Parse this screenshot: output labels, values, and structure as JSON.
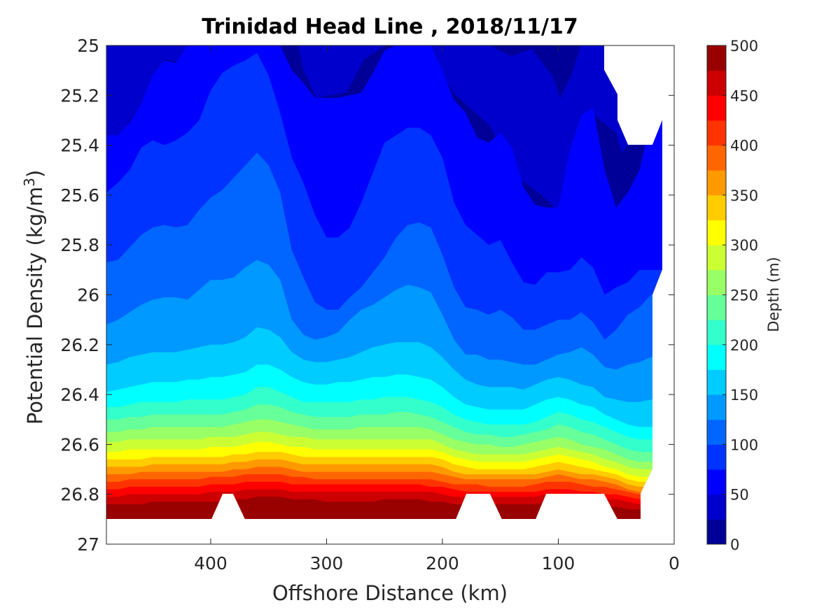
{
  "chart_data": {
    "type": "contourf",
    "title": "Trinidad Head Line , 2018/11/17",
    "xlabel": "Offshore Distance (km)",
    "ylabel_main": "Potential Density (kg/m",
    "ylabel_sup": "3",
    "ylabel_close": ")",
    "colorbar_label": "Depth (m)",
    "x_reversed": true,
    "y_reversed": true,
    "xlim": [
      0,
      490
    ],
    "ylim": [
      25,
      27
    ],
    "xticks": [
      400,
      300,
      200,
      100,
      0
    ],
    "yticks": [
      "25",
      "25.2",
      "25.4",
      "25.6",
      "25.8",
      "26",
      "26.2",
      "26.4",
      "26.6",
      "26.8",
      "27"
    ],
    "colorbar_range": [
      0,
      500
    ],
    "colorbar_ticks": [
      0,
      50,
      100,
      150,
      200,
      250,
      300,
      350,
      400,
      450,
      500
    ],
    "colormap": "jet",
    "levels_step": 25,
    "stations_km": [
      490,
      480,
      470,
      460,
      450,
      440,
      430,
      420,
      410,
      400,
      390,
      380,
      370,
      360,
      350,
      340,
      330,
      320,
      310,
      300,
      290,
      280,
      270,
      260,
      250,
      240,
      230,
      220,
      210,
      200,
      190,
      180,
      170,
      160,
      150,
      140,
      130,
      120,
      110,
      100,
      90,
      80,
      70,
      60,
      50,
      40,
      30,
      20
    ],
    "depth_isopycnals": [
      {
        "depth": 50,
        "density": [
          25.36,
          25.36,
          25.31,
          25.23,
          25.12,
          25.06,
          25.07,
          25.0,
          25.0,
          25.0,
          25.0,
          25.0,
          25.0,
          25.0,
          25.0,
          25.0,
          25.1,
          25.15,
          25.21,
          25.21,
          25.21,
          25.2,
          25.19,
          25.11,
          25.02,
          25.0,
          25.0,
          25.0,
          25.0,
          25.1,
          25.22,
          25.27,
          25.37,
          25.39,
          25.35,
          25.41,
          25.57,
          25.64,
          25.65,
          25.65,
          25.42,
          25.28,
          25.25,
          25.5,
          25.65,
          25.59,
          25.5,
          25.3
        ]
      },
      {
        "depth": 75,
        "density": [
          25.59,
          25.55,
          25.5,
          25.41,
          25.38,
          25.4,
          25.38,
          25.35,
          25.3,
          25.18,
          25.11,
          25.08,
          25.06,
          25.03,
          25.12,
          25.27,
          25.45,
          25.55,
          25.68,
          25.77,
          25.77,
          25.73,
          25.63,
          25.51,
          25.39,
          25.36,
          25.33,
          25.33,
          25.36,
          25.45,
          25.63,
          25.72,
          25.76,
          25.8,
          25.78,
          25.87,
          25.95,
          25.96,
          25.91,
          25.91,
          25.9,
          25.85,
          25.89,
          26.0,
          25.97,
          25.95,
          25.9,
          25.9
        ]
      },
      {
        "depth": 100,
        "density": [
          25.87,
          25.86,
          25.81,
          25.76,
          25.73,
          25.72,
          25.73,
          25.72,
          25.66,
          25.61,
          25.58,
          25.53,
          25.48,
          25.43,
          25.48,
          25.59,
          25.82,
          25.93,
          26.03,
          26.06,
          26.06,
          26.01,
          25.97,
          25.91,
          25.85,
          25.77,
          25.72,
          25.71,
          25.73,
          25.84,
          25.97,
          26.05,
          26.06,
          26.08,
          26.06,
          26.09,
          26.14,
          26.14,
          26.12,
          26.1,
          26.1,
          26.07,
          26.11,
          26.18,
          26.14,
          26.08,
          26.05,
          26.0
        ]
      },
      {
        "depth": 125,
        "density": [
          26.12,
          26.1,
          26.07,
          26.04,
          26.02,
          26.01,
          26.01,
          26.02,
          25.98,
          25.94,
          25.94,
          25.93,
          25.89,
          25.86,
          25.88,
          25.94,
          26.1,
          26.16,
          26.18,
          26.17,
          26.15,
          26.1,
          26.06,
          26.04,
          26.01,
          25.98,
          25.96,
          25.97,
          25.99,
          26.08,
          26.18,
          26.24,
          26.24,
          26.26,
          26.26,
          26.27,
          26.28,
          26.28,
          26.26,
          26.24,
          26.23,
          26.21,
          26.24,
          26.29,
          26.3,
          26.28,
          26.27,
          26.25
        ]
      },
      {
        "depth": 150,
        "density": [
          26.28,
          26.27,
          26.25,
          26.24,
          26.23,
          26.23,
          26.23,
          26.22,
          26.21,
          26.2,
          26.2,
          26.19,
          26.17,
          26.13,
          26.14,
          26.17,
          26.23,
          26.26,
          26.27,
          26.27,
          26.26,
          26.25,
          26.23,
          26.21,
          26.2,
          26.19,
          26.19,
          26.19,
          26.21,
          26.25,
          26.3,
          26.34,
          26.36,
          26.37,
          26.37,
          26.37,
          26.38,
          26.36,
          26.34,
          26.33,
          26.34,
          26.36,
          26.37,
          26.41,
          26.42,
          26.43,
          26.43,
          26.42
        ]
      },
      {
        "depth": 175,
        "density": [
          26.39,
          26.38,
          26.37,
          26.36,
          26.35,
          26.35,
          26.35,
          26.34,
          26.34,
          26.33,
          26.33,
          26.32,
          26.31,
          26.28,
          26.28,
          26.3,
          26.33,
          26.35,
          26.36,
          26.36,
          26.35,
          26.35,
          26.34,
          26.33,
          26.33,
          26.32,
          26.32,
          26.33,
          26.34,
          26.37,
          26.41,
          26.44,
          26.45,
          26.46,
          26.46,
          26.46,
          26.46,
          26.44,
          26.42,
          26.41,
          26.42,
          26.44,
          26.45,
          26.48,
          26.5,
          26.52,
          26.53,
          26.53
        ]
      },
      {
        "depth": 200,
        "density": [
          26.45,
          26.45,
          26.44,
          26.43,
          26.43,
          26.43,
          26.43,
          26.42,
          26.42,
          26.42,
          26.42,
          26.41,
          26.4,
          26.37,
          26.37,
          26.39,
          26.41,
          26.43,
          26.43,
          26.43,
          26.43,
          26.43,
          26.42,
          26.42,
          26.41,
          26.41,
          26.41,
          26.42,
          26.43,
          26.45,
          26.48,
          26.5,
          26.51,
          26.52,
          26.52,
          26.52,
          26.52,
          26.51,
          26.49,
          26.47,
          26.48,
          26.5,
          26.51,
          26.53,
          26.55,
          26.57,
          26.58,
          26.58
        ]
      },
      {
        "depth": 225,
        "density": [
          26.5,
          26.5,
          26.49,
          26.49,
          26.48,
          26.48,
          26.48,
          26.48,
          26.48,
          26.48,
          26.48,
          26.47,
          26.46,
          26.44,
          26.44,
          26.45,
          26.47,
          26.48,
          26.49,
          26.49,
          26.49,
          26.49,
          26.48,
          26.48,
          26.48,
          26.47,
          26.47,
          26.48,
          26.49,
          26.51,
          26.53,
          26.55,
          26.56,
          26.56,
          26.57,
          26.57,
          26.56,
          26.55,
          26.54,
          26.52,
          26.53,
          26.55,
          26.56,
          26.58,
          26.6,
          26.62,
          26.63,
          26.63
        ]
      },
      {
        "depth": 250,
        "density": [
          26.55,
          26.55,
          26.54,
          26.54,
          26.53,
          26.53,
          26.53,
          26.53,
          26.53,
          26.53,
          26.53,
          26.52,
          26.51,
          26.5,
          26.5,
          26.51,
          26.52,
          26.53,
          26.54,
          26.54,
          26.54,
          26.54,
          26.53,
          26.53,
          26.53,
          26.53,
          26.53,
          26.53,
          26.54,
          26.56,
          26.58,
          26.59,
          26.6,
          26.6,
          26.61,
          26.61,
          26.6,
          26.59,
          26.58,
          26.57,
          26.58,
          26.6,
          26.61,
          26.62,
          26.64,
          26.66,
          26.67,
          26.67
        ]
      },
      {
        "depth": 275,
        "density": [
          26.59,
          26.59,
          26.58,
          26.58,
          26.58,
          26.58,
          26.58,
          26.58,
          26.58,
          26.57,
          26.57,
          26.57,
          26.56,
          26.55,
          26.55,
          26.56,
          26.57,
          26.57,
          26.58,
          26.58,
          26.58,
          26.58,
          26.58,
          26.58,
          26.58,
          26.58,
          26.58,
          26.58,
          26.58,
          26.6,
          26.62,
          26.63,
          26.64,
          26.64,
          26.64,
          26.64,
          26.64,
          26.63,
          26.62,
          26.61,
          26.62,
          26.63,
          26.64,
          26.66,
          26.67,
          26.69,
          26.7,
          26.7
        ]
      },
      {
        "depth": 300,
        "density": [
          26.63,
          26.63,
          26.62,
          26.62,
          26.62,
          26.62,
          26.62,
          26.62,
          26.62,
          26.61,
          26.61,
          26.61,
          26.6,
          26.59,
          26.59,
          26.6,
          26.61,
          26.61,
          26.62,
          26.62,
          26.62,
          26.62,
          26.62,
          26.62,
          26.62,
          26.62,
          26.62,
          26.62,
          26.62,
          26.63,
          26.65,
          26.66,
          26.67,
          26.67,
          26.67,
          26.67,
          26.67,
          26.66,
          26.65,
          26.64,
          26.65,
          26.66,
          26.67,
          26.69,
          26.7,
          26.72,
          26.73,
          26.73
        ]
      },
      {
        "depth": 325,
        "density": [
          26.66,
          26.66,
          26.66,
          26.66,
          26.65,
          26.65,
          26.65,
          26.65,
          26.65,
          26.65,
          26.65,
          26.64,
          26.64,
          26.63,
          26.63,
          26.63,
          26.64,
          26.65,
          26.65,
          26.65,
          26.65,
          26.65,
          26.65,
          26.65,
          26.65,
          26.65,
          26.65,
          26.65,
          26.65,
          26.66,
          26.68,
          26.69,
          26.7,
          26.7,
          26.7,
          26.7,
          26.7,
          26.69,
          26.68,
          26.67,
          26.68,
          26.69,
          26.7,
          26.71,
          26.72,
          26.74,
          26.75,
          26.75
        ]
      },
      {
        "depth": 350,
        "density": [
          26.69,
          26.69,
          26.69,
          26.69,
          26.68,
          26.68,
          26.68,
          26.68,
          26.68,
          26.68,
          26.68,
          26.67,
          26.67,
          26.66,
          26.66,
          26.66,
          26.67,
          26.68,
          26.68,
          26.68,
          26.68,
          26.68,
          26.68,
          26.68,
          26.68,
          26.68,
          26.68,
          26.68,
          26.68,
          26.69,
          26.71,
          26.72,
          26.72,
          26.72,
          26.72,
          26.72,
          26.72,
          26.72,
          26.71,
          26.7,
          26.71,
          26.72,
          26.72,
          26.73,
          26.74,
          26.76,
          26.77,
          26.77
        ]
      },
      {
        "depth": 375,
        "density": [
          26.72,
          26.72,
          26.72,
          26.71,
          26.71,
          26.71,
          26.71,
          26.71,
          26.71,
          26.71,
          26.71,
          26.7,
          26.7,
          26.69,
          26.69,
          26.69,
          26.7,
          26.71,
          26.71,
          26.71,
          26.71,
          26.71,
          26.71,
          26.71,
          26.71,
          26.71,
          26.71,
          26.71,
          26.71,
          26.72,
          26.73,
          26.74,
          26.74,
          26.74,
          26.74,
          26.74,
          26.74,
          26.74,
          26.73,
          26.72,
          26.73,
          26.74,
          26.74,
          26.75,
          26.76,
          26.78,
          26.79,
          26.79
        ]
      },
      {
        "depth": 400,
        "density": [
          26.75,
          26.75,
          26.74,
          26.74,
          26.74,
          26.74,
          26.74,
          26.74,
          26.74,
          26.73,
          26.73,
          26.73,
          26.72,
          26.72,
          26.72,
          26.72,
          26.73,
          26.73,
          26.74,
          26.74,
          26.74,
          26.74,
          26.74,
          26.74,
          26.74,
          26.74,
          26.74,
          26.74,
          26.74,
          26.75,
          26.76,
          26.76,
          26.76,
          26.77,
          26.77,
          26.77,
          26.77,
          26.76,
          26.75,
          26.75,
          26.75,
          26.76,
          26.77,
          26.77,
          26.78,
          26.79,
          26.8,
          26.8
        ]
      },
      {
        "depth": 425,
        "density": [
          26.78,
          26.78,
          26.77,
          26.77,
          26.77,
          26.77,
          26.77,
          26.77,
          26.77,
          26.76,
          26.76,
          26.76,
          26.75,
          26.75,
          26.75,
          26.75,
          26.76,
          26.76,
          26.76,
          26.76,
          26.76,
          26.76,
          26.76,
          26.76,
          26.76,
          26.76,
          26.76,
          26.76,
          26.77,
          26.77,
          26.78,
          26.79,
          26.79,
          26.79,
          26.79,
          26.79,
          26.79,
          26.79,
          26.78,
          26.78,
          26.78,
          26.79,
          26.79,
          26.8,
          26.8,
          26.81,
          26.82,
          26.82
        ]
      },
      {
        "depth": 450,
        "density": [
          26.81,
          26.81,
          26.8,
          26.8,
          26.8,
          26.8,
          26.8,
          26.8,
          26.8,
          26.79,
          26.79,
          26.79,
          26.78,
          26.78,
          26.78,
          26.78,
          26.79,
          26.79,
          26.79,
          26.79,
          26.79,
          26.79,
          26.79,
          26.79,
          26.79,
          26.79,
          26.79,
          26.79,
          26.79,
          26.8,
          26.81,
          26.81,
          26.81,
          26.81,
          26.81,
          26.81,
          26.81,
          26.81,
          26.8,
          26.8,
          26.81,
          26.81,
          26.81,
          26.82,
          26.82,
          26.83,
          26.84,
          26.84
        ]
      },
      {
        "depth": 475,
        "density": [
          26.84,
          26.84,
          26.84,
          26.84,
          26.83,
          26.83,
          26.83,
          26.83,
          26.83,
          26.83,
          26.83,
          26.82,
          26.82,
          26.81,
          26.81,
          26.81,
          26.82,
          26.82,
          26.82,
          26.83,
          26.83,
          26.83,
          26.83,
          26.83,
          26.82,
          26.82,
          26.82,
          26.82,
          26.83,
          26.83,
          26.84,
          26.84,
          26.84,
          26.84,
          26.84,
          26.84,
          26.84,
          26.84,
          26.83,
          26.83,
          26.84,
          26.84,
          26.84,
          26.85,
          26.85,
          26.86,
          26.86,
          26.86
        ]
      }
    ]
  }
}
